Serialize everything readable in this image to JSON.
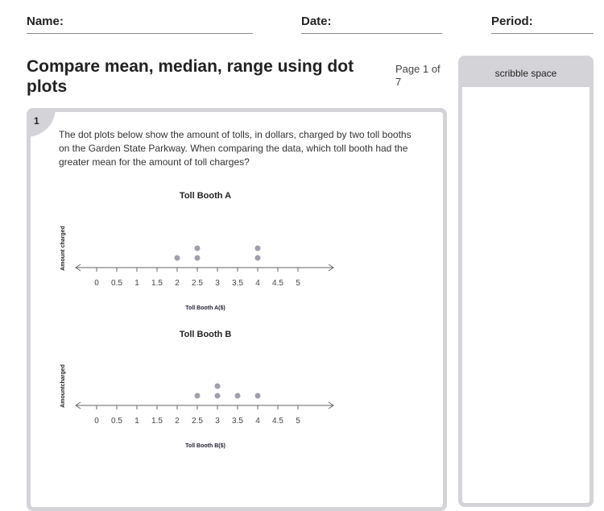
{
  "header": {
    "name_label": "Name:",
    "date_label": "Date:",
    "period_label": "Period:"
  },
  "title": "Compare mean, median, range using dot plots",
  "page_indicator": "Page 1 of 7",
  "question": {
    "number": "1",
    "text": "The dot plots below show the amount of tolls, in dollars, charged by two toll booths on the Garden State Parkway. When comparing the data, which toll booth had the greater mean for the amount of toll charges?"
  },
  "sidebar": {
    "title": "scribble space"
  },
  "chart_data": [
    {
      "type": "dot",
      "title": "Toll Booth A",
      "xlabel": "Toll Booth A($)",
      "ylabel": "Amount charged",
      "ticks": [
        "0",
        "0.5",
        "1",
        "1.5",
        "2",
        "2.5",
        "3",
        "3.5",
        "4",
        "4.5",
        "5"
      ],
      "xlim": [
        0,
        5
      ],
      "values": [
        2,
        2.5,
        2.5,
        4,
        4
      ],
      "dot_color": "#a0a0ac"
    },
    {
      "type": "dot",
      "title": "Toll Booth B",
      "xlabel": "Toll Booth B($)",
      "ylabel": "Amountcharged",
      "ticks": [
        "0",
        "0.5",
        "1",
        "1.5",
        "2",
        "2.5",
        "3",
        "3.5",
        "4",
        "4.5",
        "5"
      ],
      "xlim": [
        0,
        5
      ],
      "values": [
        2.5,
        3,
        3,
        3.5,
        4
      ],
      "dot_color": "#a0a0ac"
    }
  ]
}
